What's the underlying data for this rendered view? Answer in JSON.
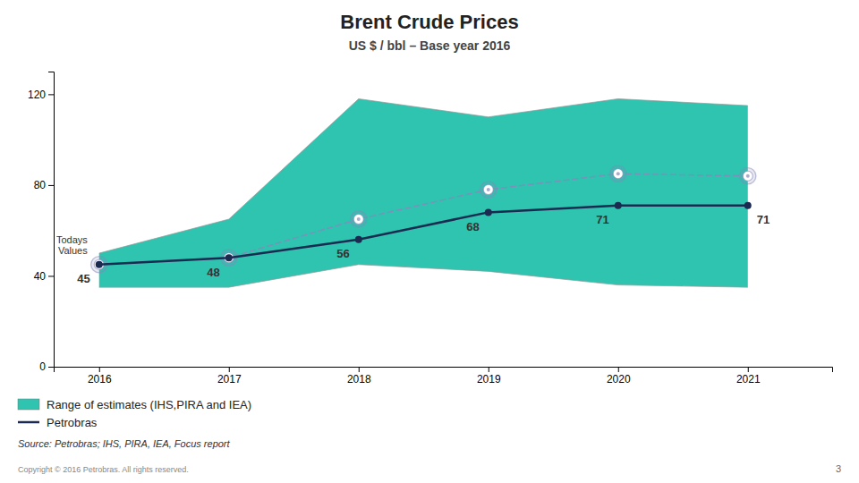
{
  "chart_data": {
    "type": "line",
    "title": "Brent Crude Prices",
    "subtitle": "US $ / bbl – Base year 2016",
    "x": [
      2016,
      2017,
      2018,
      2019,
      2020,
      2021
    ],
    "xlim": [
      2015.65,
      2021.65
    ],
    "xticks": [
      2016,
      2017,
      2018,
      2019,
      2020,
      2021
    ],
    "ylim": [
      0,
      130
    ],
    "yticks": [
      0,
      40,
      80,
      120
    ],
    "grid": false,
    "legend": "bottom",
    "series": [
      {
        "name": "Range of estimates (IHS,PIRA and IEA)",
        "type": "area",
        "color": "#2ec4b0",
        "upper": [
          50,
          65,
          118,
          110,
          118,
          115
        ],
        "lower": [
          35,
          35,
          45,
          42,
          36,
          35
        ]
      },
      {
        "type": "line",
        "color": "#8888bb",
        "line_style": "dashed",
        "marker": "target",
        "values": [
          45,
          48,
          65,
          78,
          85,
          84
        ]
      },
      {
        "name": "Petrobras",
        "type": "line",
        "color": "#1a2a50",
        "marker": "circle",
        "data_labels": true,
        "values": [
          45,
          48,
          56,
          68,
          71,
          71
        ]
      }
    ],
    "annotations": [
      "Todays\nValues"
    ],
    "source": "Source: Petrobras; IHS, PIRA, IEA, Focus report",
    "copyright": "Copyright © 2016 Petrobras. All rights reserved.",
    "page_number": "3"
  }
}
